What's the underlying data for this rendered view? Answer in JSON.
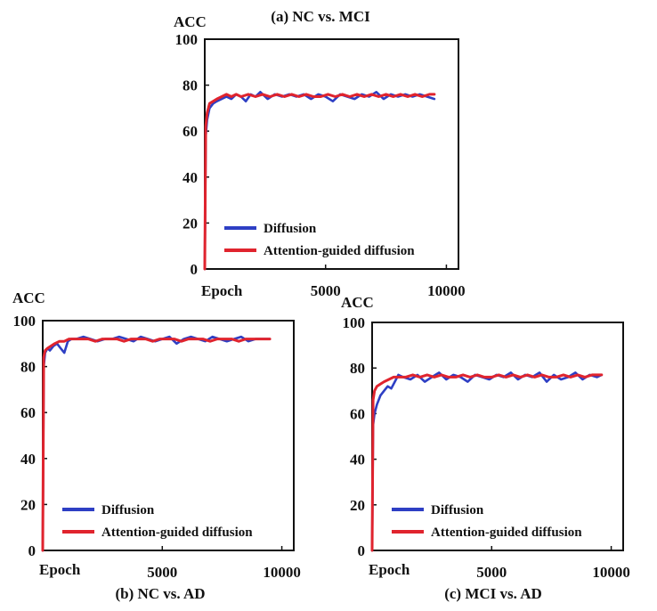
{
  "colors": {
    "diffusion": "#2e3fc4",
    "attention": "#e0242e",
    "axis": "#111111"
  },
  "chart_data": [
    {
      "id": "a",
      "type": "line",
      "title": "(a)  NC vs. MCI",
      "ylabel": "ACC",
      "xlabel": "Epoch",
      "xlim": [
        0,
        10500
      ],
      "ylim": [
        0,
        100
      ],
      "yticks": [
        0,
        20,
        40,
        60,
        80,
        100
      ],
      "xtick_labels": [
        {
          "value": 5000,
          "label": "5000"
        },
        {
          "value": 10000,
          "label": "10000"
        }
      ],
      "legend": [
        "Diffusion",
        "Attention-guided diffusion"
      ],
      "legend_position": "bottom-right",
      "series": [
        {
          "name": "Diffusion",
          "color_key": "diffusion",
          "x": [
            0,
            40,
            100,
            200,
            350,
            500,
            700,
            900,
            1100,
            1300,
            1500,
            1700,
            1900,
            2100,
            2300,
            2600,
            2900,
            3200,
            3500,
            3800,
            4100,
            4400,
            4700,
            5000,
            5300,
            5600,
            5900,
            6200,
            6500,
            6800,
            7100,
            7400,
            7700,
            8000,
            8300,
            8600,
            8900,
            9200,
            9500
          ],
          "y": [
            0,
            58,
            65,
            70,
            72,
            73,
            74,
            75,
            74,
            76,
            75,
            73,
            76,
            75,
            77,
            74,
            76,
            75,
            76,
            75,
            76,
            74,
            76,
            75,
            73,
            76,
            75,
            74,
            76,
            75,
            77,
            74,
            76,
            75,
            76,
            75,
            76,
            75,
            74
          ]
        },
        {
          "name": "Attention-guided diffusion",
          "color_key": "attention",
          "x": [
            0,
            40,
            100,
            200,
            350,
            500,
            700,
            900,
            1100,
            1300,
            1500,
            1800,
            2100,
            2400,
            2700,
            3000,
            3300,
            3600,
            3900,
            4200,
            4500,
            4800,
            5100,
            5400,
            5700,
            6000,
            6300,
            6600,
            6900,
            7200,
            7500,
            7800,
            8100,
            8400,
            8700,
            9000,
            9300,
            9500
          ],
          "y": [
            0,
            62,
            68,
            72,
            73,
            74,
            75,
            76,
            75,
            76,
            75,
            76,
            75,
            76,
            75,
            76,
            75,
            76,
            75,
            76,
            75,
            75,
            76,
            75,
            76,
            75,
            76,
            75,
            76,
            75,
            76,
            75,
            76,
            75,
            76,
            75,
            76,
            76
          ]
        }
      ]
    },
    {
      "id": "b",
      "type": "line",
      "title": "(b)  NC vs. AD",
      "ylabel": "ACC",
      "xlabel": "Epoch",
      "xlim": [
        0,
        10500
      ],
      "ylim": [
        0,
        100
      ],
      "yticks": [
        0,
        20,
        40,
        60,
        80,
        100
      ],
      "xtick_labels": [
        {
          "value": 5000,
          "label": "5000"
        },
        {
          "value": 10000,
          "label": "10000"
        }
      ],
      "legend": [
        "Diffusion",
        "Attention-guided diffusion"
      ],
      "legend_position": "bottom-right",
      "series": [
        {
          "name": "Diffusion",
          "color_key": "diffusion",
          "x": [
            0,
            40,
            100,
            200,
            300,
            450,
            600,
            750,
            900,
            1050,
            1200,
            1400,
            1700,
            2000,
            2300,
            2600,
            2900,
            3200,
            3500,
            3800,
            4100,
            4400,
            4700,
            5000,
            5300,
            5600,
            5900,
            6200,
            6500,
            6800,
            7100,
            7400,
            7700,
            8000,
            8300,
            8600,
            8900,
            9200,
            9500
          ],
          "y": [
            0,
            80,
            86,
            88,
            87,
            89,
            90,
            88,
            86,
            91,
            92,
            92,
            93,
            92,
            91,
            92,
            92,
            93,
            92,
            91,
            93,
            92,
            91,
            92,
            93,
            90,
            92,
            93,
            92,
            91,
            93,
            92,
            91,
            92,
            93,
            91,
            92,
            92,
            92
          ]
        },
        {
          "name": "Attention-guided diffusion",
          "color_key": "attention",
          "x": [
            0,
            40,
            100,
            200,
            350,
            500,
            700,
            900,
            1100,
            1300,
            1600,
            1900,
            2200,
            2500,
            2800,
            3100,
            3400,
            3700,
            4000,
            4300,
            4600,
            4900,
            5200,
            5500,
            5800,
            6100,
            6400,
            6700,
            7000,
            7300,
            7600,
            7900,
            8200,
            8500,
            8800,
            9100,
            9500
          ],
          "y": [
            0,
            84,
            87,
            88,
            89,
            90,
            91,
            91,
            92,
            92,
            92,
            92,
            91,
            92,
            92,
            92,
            91,
            92,
            92,
            92,
            91,
            92,
            92,
            92,
            91,
            92,
            92,
            92,
            91,
            92,
            92,
            92,
            91,
            92,
            92,
            92,
            92
          ]
        }
      ]
    },
    {
      "id": "c",
      "type": "line",
      "title": "(c)  MCI vs. AD",
      "ylabel": "ACC",
      "xlabel": "Epoch",
      "xlim": [
        0,
        10500
      ],
      "ylim": [
        0,
        100
      ],
      "yticks": [
        0,
        20,
        40,
        60,
        80,
        100
      ],
      "xtick_labels": [
        {
          "value": 5000,
          "label": "5000"
        },
        {
          "value": 10000,
          "label": "10000"
        }
      ],
      "legend": [
        "Diffusion",
        "Attention-guided diffusion"
      ],
      "legend_position": "bottom-right",
      "series": [
        {
          "name": "Diffusion",
          "color_key": "diffusion",
          "x": [
            0,
            40,
            100,
            200,
            350,
            500,
            650,
            800,
            950,
            1100,
            1300,
            1600,
            1900,
            2200,
            2500,
            2800,
            3100,
            3400,
            3700,
            4000,
            4300,
            4600,
            4900,
            5200,
            5500,
            5800,
            6100,
            6400,
            6700,
            7000,
            7300,
            7600,
            7900,
            8200,
            8500,
            8800,
            9100,
            9400,
            9600
          ],
          "y": [
            0,
            55,
            60,
            64,
            68,
            70,
            72,
            71,
            74,
            77,
            76,
            75,
            77,
            74,
            76,
            78,
            75,
            77,
            76,
            74,
            77,
            76,
            75,
            77,
            76,
            78,
            75,
            77,
            76,
            78,
            74,
            77,
            75,
            76,
            78,
            75,
            77,
            76,
            77
          ]
        },
        {
          "name": "Attention-guided diffusion",
          "color_key": "attention",
          "x": [
            0,
            40,
            100,
            200,
            350,
            500,
            700,
            900,
            1100,
            1400,
            1700,
            2000,
            2300,
            2600,
            2900,
            3200,
            3500,
            3800,
            4100,
            4400,
            4700,
            5000,
            5300,
            5600,
            5900,
            6200,
            6500,
            6800,
            7100,
            7400,
            7700,
            8000,
            8300,
            8600,
            8900,
            9200,
            9600
          ],
          "y": [
            0,
            66,
            70,
            72,
            73,
            74,
            75,
            76,
            76,
            76,
            77,
            76,
            77,
            76,
            77,
            76,
            76,
            77,
            76,
            77,
            76,
            76,
            77,
            76,
            77,
            76,
            77,
            76,
            77,
            76,
            76,
            77,
            76,
            77,
            76,
            77,
            77
          ]
        }
      ]
    }
  ]
}
